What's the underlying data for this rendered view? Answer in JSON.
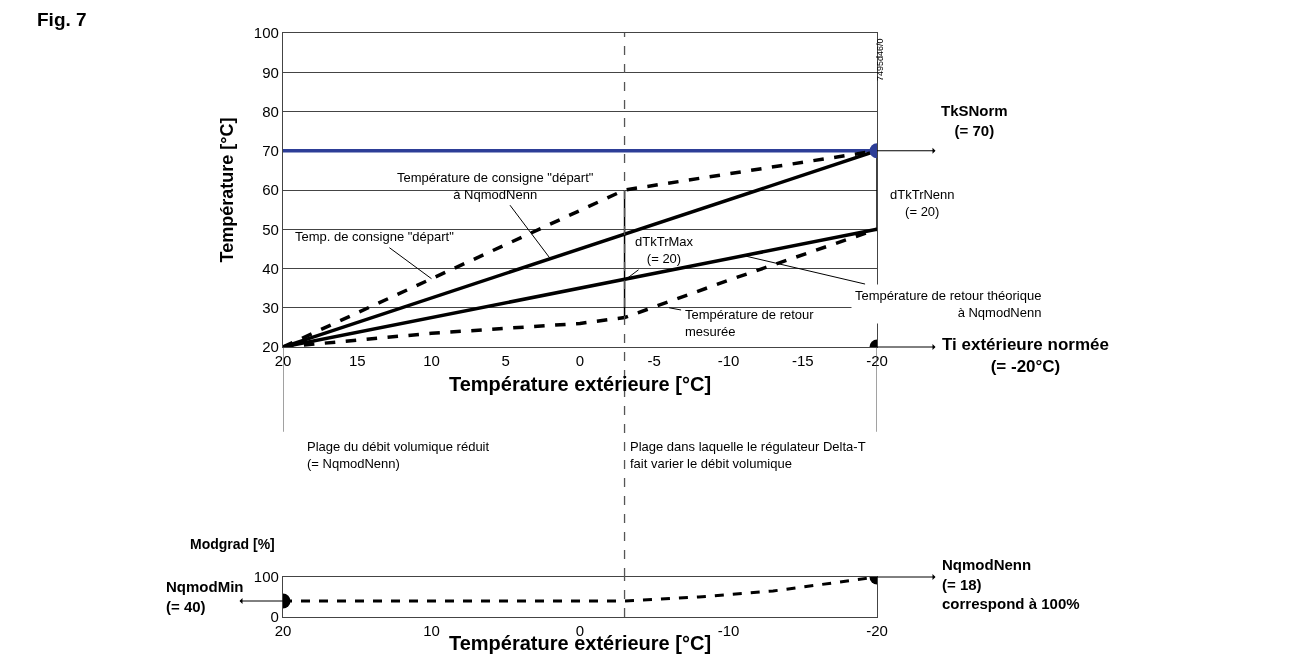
{
  "chart_data": [
    {
      "type": "line",
      "xlabel": "Température extérieure [°C]",
      "ylabel": "Température [°C]",
      "xlim": [
        20,
        -20
      ],
      "xticks": [
        20,
        15,
        10,
        5,
        0,
        -5,
        -10,
        -15,
        -20
      ],
      "ylim": [
        20,
        100
      ],
      "yticks": [
        20,
        30,
        40,
        50,
        60,
        70,
        80,
        90,
        100
      ],
      "grid": "y",
      "marker": "none",
      "series": [
        {
          "color": "#2d3e97",
          "x": [
            20,
            -20
          ],
          "values": [
            70,
            70
          ],
          "line_style": "solid"
        },
        {
          "color": "#000000",
          "x": [
            20,
            -20
          ],
          "values": [
            20,
            70
          ],
          "line_style": "solid"
        },
        {
          "color": "#000000",
          "x": [
            20,
            -20
          ],
          "values": [
            20,
            50
          ],
          "line_style": "solid"
        },
        {
          "color": "#000000",
          "x": [
            20,
            -3,
            -20
          ],
          "values": [
            20,
            60,
            70
          ],
          "line_style": "dashed"
        },
        {
          "color": "#000000",
          "x": [
            20,
            10,
            0,
            -3,
            -10,
            -20
          ],
          "values": [
            20,
            23.5,
            26,
            27.5,
            37,
            50
          ],
          "line_style": "dashed"
        },
        {
          "color": "#000000",
          "x": [
            -3,
            -3
          ],
          "values": [
            27.5,
            60
          ],
          "line_style": "solid"
        },
        {
          "color": "#000000",
          "x": [
            -20,
            -20
          ],
          "values": [
            50,
            70
          ],
          "line_style": "solid"
        },
        {
          "type": "scatter",
          "marker": "circle",
          "colors": [
            "#2d3e97",
            "#000000"
          ],
          "x": [
            -20,
            -20
          ],
          "values": [
            70,
            20
          ]
        }
      ],
      "ref_lines": [
        {
          "axis": "x",
          "value": -3,
          "line_style": "dashed",
          "color": "#555555"
        }
      ],
      "annotations": [
        {
          "text": "Température de consigne \"départ\"\nà NqmodNenn",
          "x": 2,
          "y": 42.5
        },
        {
          "text": "Temp. de consigne \"départ\"",
          "x": 10,
          "y": 37.4
        },
        {
          "text": "dTkTrMax\n(= 20)",
          "x": -3,
          "y": 37
        },
        "dTkTrNenn\n(= 20)",
        {
          "text": "Température de retour théorique\nà NqmodNenn",
          "x": -11,
          "y": 43.3
        },
        {
          "text": "Température de retour\nmesurée",
          "x": -6,
          "y": 30
        },
        "TkSNorm\n(= 70)",
        "Ti extérieure normée\n(= -20°C)",
        "Plage du débit volumique réduit\n(= NqmodNenn)",
        "Plage dans laquelle le régulateur Delta-T\nfait varier le débit volumique",
        "7495d46/0",
        "Fig. 7"
      ]
    },
    {
      "type": "line",
      "xlabel": "Température extérieure [°C]",
      "ylabel": "Modgrad [%]",
      "xlim": [
        20,
        -20
      ],
      "xticks": [
        20,
        10,
        0,
        -10,
        -20
      ],
      "ylim": [
        0,
        100
      ],
      "yticks": [
        0,
        100
      ],
      "marker": "none",
      "series": [
        {
          "color": "#000000",
          "x": [
            20,
            -3,
            -8,
            -13,
            -20
          ],
          "values": [
            40,
            40,
            50,
            65,
            100
          ],
          "line_style": "dashed"
        },
        {
          "type": "scatter",
          "marker": "circle",
          "colors": [
            "#000000",
            "#000000"
          ],
          "x": [
            20,
            -20
          ],
          "values": [
            40,
            100
          ]
        }
      ],
      "ref_lines": [
        {
          "axis": "x",
          "value": -3,
          "line_style": "dashed",
          "color": "#555555"
        }
      ],
      "annotations": [
        "NqmodMin\n(= 40)",
        "NqmodNenn\n(= 18)\ncorrespond à 100%"
      ]
    }
  ]
}
